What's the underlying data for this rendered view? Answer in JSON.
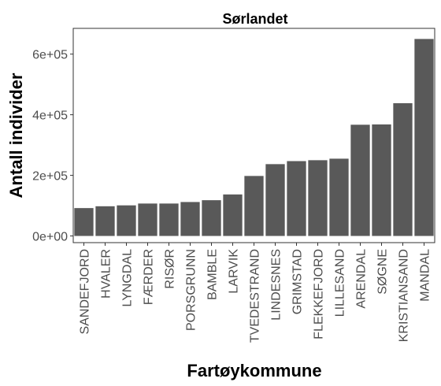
{
  "chart_data": {
    "type": "bar",
    "title": "Sørlandet",
    "xlabel": "Fartøykommune",
    "ylabel": "Antall individer",
    "categories": [
      "SANDEFJORD",
      "HVALER",
      "LYNGDAL",
      "FÆRDER",
      "RISØR",
      "PORSGRUNN",
      "BAMBLE",
      "LARVIK",
      "TVEDESTRAND",
      "LINDESNES",
      "GRIMSTAD",
      "FLEKKEFJORD",
      "LILLESAND",
      "ARENDAL",
      "SØGNE",
      "KRISTIANSAND",
      "MANDAL"
    ],
    "values": [
      92000,
      98000,
      101000,
      107000,
      107000,
      112000,
      118000,
      137000,
      198000,
      237000,
      247000,
      250000,
      255000,
      367000,
      368000,
      438000,
      650000
    ],
    "ylim": [
      -22000,
      685000
    ],
    "yticks": [
      0,
      200000,
      400000,
      600000
    ],
    "ytick_labels": [
      "0e+00",
      "2e+05",
      "4e+05",
      "6e+05"
    ],
    "grid": false,
    "colors": {
      "bar": "#595959",
      "panel_border": "#333333",
      "tick": "#333333"
    }
  }
}
